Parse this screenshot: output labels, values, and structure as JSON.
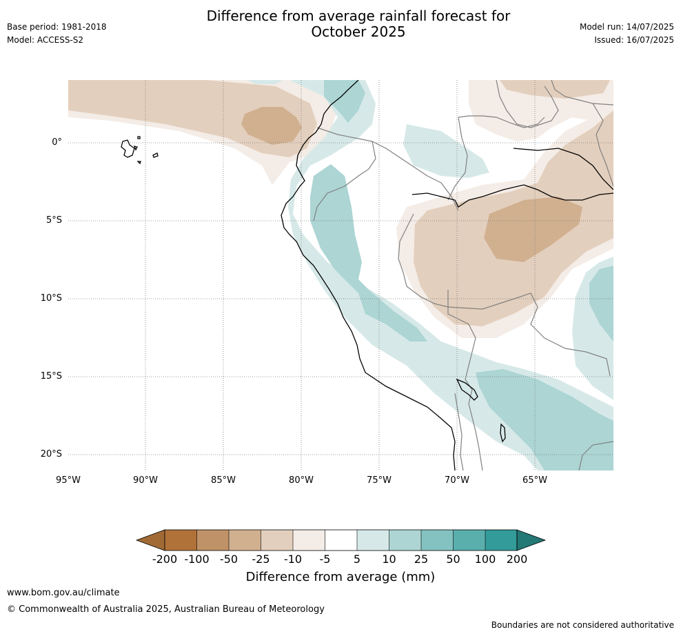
{
  "header": {
    "base_period": "Base period: 1981-2018",
    "model": "Model: ACCESS-S2",
    "title_line1": "Difference from average rainfall forecast for",
    "title_line2": "October 2025",
    "model_run": "Model run: 14/07/2025",
    "issued": "Issued: 16/07/2025"
  },
  "map": {
    "lat_labels": [
      "0°",
      "5°S",
      "10°S",
      "15°S",
      "20°S"
    ],
    "lon_labels": [
      "95°W",
      "90°W",
      "85°W",
      "80°W",
      "75°W",
      "70°W",
      "65°W"
    ],
    "regions": [
      {
        "name": "galapagos-islands",
        "category": "land"
      },
      {
        "name": "west-coast-south-america",
        "category": "land"
      }
    ]
  },
  "colorbar": {
    "ticks": [
      "-200",
      "-100",
      "-50",
      "-25",
      "-10",
      "-5",
      "5",
      "10",
      "25",
      "50",
      "100",
      "200"
    ],
    "colors": [
      "#a16a35",
      "#b07239",
      "#c09268",
      "#d1b090",
      "#e3cfbd",
      "#f4ece6",
      "#ffffff",
      "#d6e9e8",
      "#acd5d4",
      "#84c2c1",
      "#5aafad",
      "#339b99",
      "#247876"
    ],
    "title": "Difference from average (mm)"
  },
  "footer": {
    "url": "www.bom.gov.au/climate",
    "copyright": "© Commonwealth of Australia 2025, Australian Bureau of Meteorology",
    "disclaimer": "Boundaries are not considered authoritative"
  }
}
